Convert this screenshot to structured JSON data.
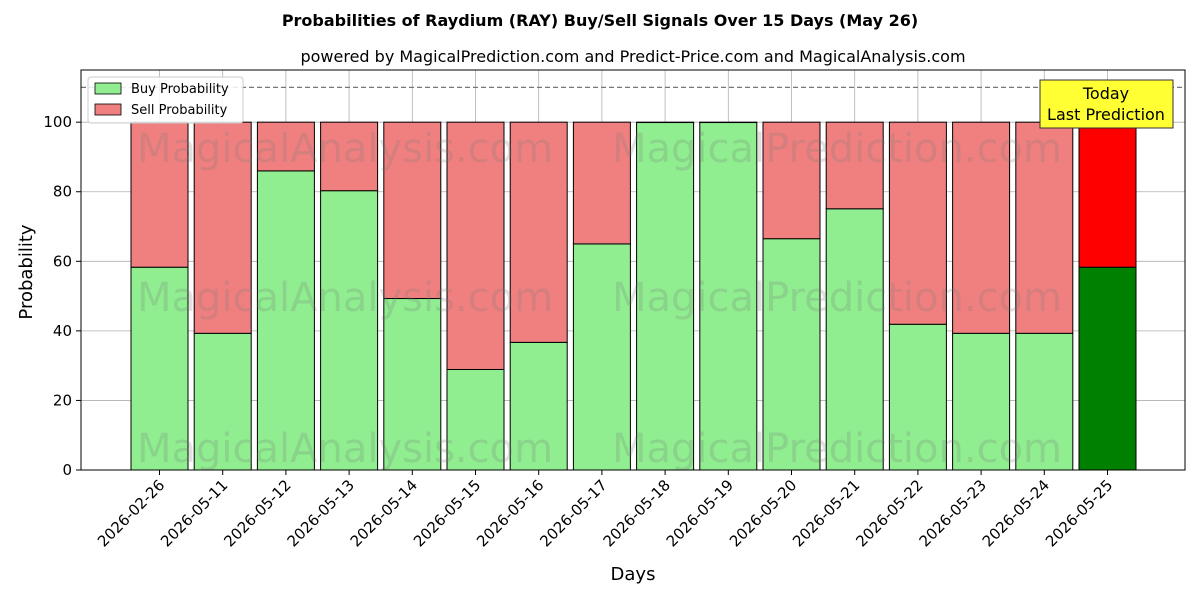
{
  "colors": {
    "buy": "#90ee90",
    "sell": "#f08080",
    "buy_last": "#008000",
    "sell_last": "#ff0000",
    "annotation_bg": "#ffff33"
  },
  "watermarks": [
    "MagicalAnalysis.com",
    "MagicalPrediction.com"
  ],
  "chart_data": {
    "type": "bar",
    "stacked": true,
    "title": "Probabilities of Raydium (RAY) Buy/Sell Signals Over 15 Days (May 26)",
    "subtitle": "powered by MagicalPrediction.com and Predict-Price.com and MagicalAnalysis.com",
    "xlabel": "Days",
    "ylabel": "Probability",
    "ylim": [
      0,
      115
    ],
    "yticks": [
      0,
      20,
      40,
      60,
      80,
      100
    ],
    "grid": true,
    "legend_position": "top-left",
    "reference_line": 110,
    "categories": [
      "2026-02-26",
      "2026-05-11",
      "2026-05-12",
      "2026-05-13",
      "2026-05-14",
      "2026-05-15",
      "2026-05-16",
      "2026-05-17",
      "2026-05-18",
      "2026-05-19",
      "2026-05-20",
      "2026-05-21",
      "2026-05-22",
      "2026-05-23",
      "2026-05-24",
      "2026-05-25"
    ],
    "series": [
      {
        "name": "Buy Probability",
        "values": [
          58.3,
          39.3,
          86.0,
          80.3,
          49.3,
          28.9,
          36.7,
          65.0,
          99.9,
          99.9,
          66.5,
          75.1,
          41.9,
          39.3,
          39.3,
          58.3
        ]
      },
      {
        "name": "Sell Probability",
        "values": [
          41.7,
          60.7,
          14.0,
          19.7,
          50.7,
          71.1,
          63.3,
          35.0,
          0.1,
          0.1,
          33.5,
          24.9,
          58.1,
          60.7,
          60.7,
          41.7
        ]
      }
    ],
    "annotation": {
      "line1": "Today",
      "line2": "Last Prediction"
    }
  }
}
